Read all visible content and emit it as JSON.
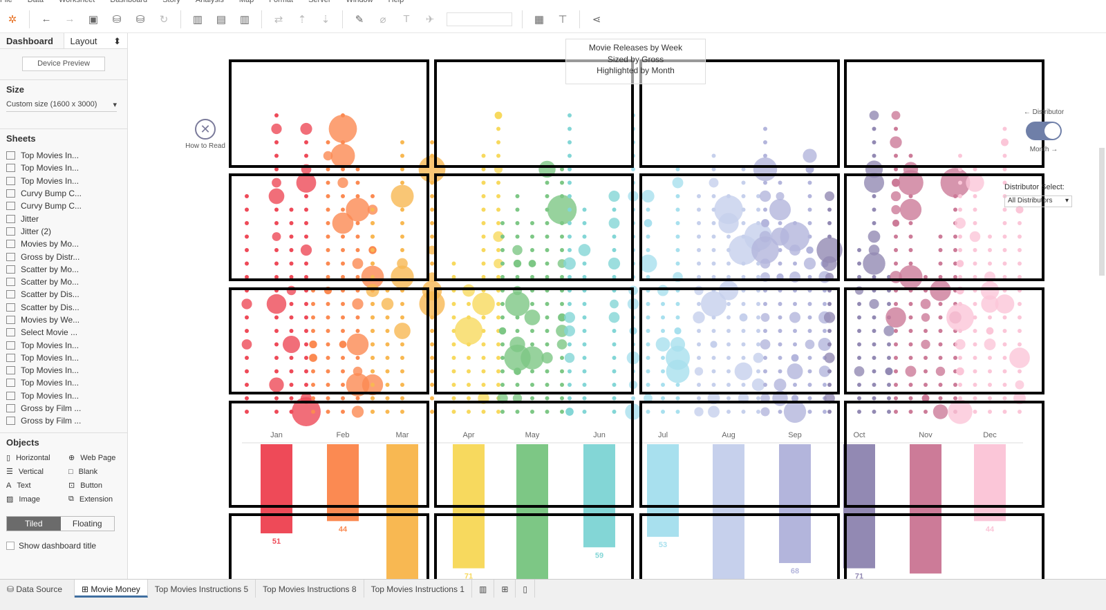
{
  "menu": [
    "File",
    "Data",
    "Worksheet",
    "Dashboard",
    "Story",
    "Analysis",
    "Map",
    "Format",
    "Server",
    "Window",
    "Help"
  ],
  "toolbar": {
    "icons": [
      "tableau-logo-icon",
      "back-icon",
      "forward-icon",
      "save-icon",
      "new-datasource-icon",
      "pause-updates-icon",
      "refresh-icon",
      "new-worksheet-icon",
      "duplicate-sheet-icon",
      "clear-sheet-icon",
      "swap-icon",
      "sort-asc-icon",
      "sort-desc-icon",
      "highlight-icon",
      "group-icon",
      "label-icon",
      "pin-icon",
      "fit-select",
      "show-me-icon",
      "presentation-icon",
      "share-icon"
    ]
  },
  "left_panel": {
    "tab_dashboard": "Dashboard",
    "tab_layout": "Layout",
    "device_preview": "Device Preview",
    "size_heading": "Size",
    "size_value": "Custom size (1600 x 3000)",
    "sheets_heading": "Sheets",
    "sheets": [
      "Top Movies In...",
      "Top Movies In...",
      "Top Movies In...",
      "Curvy Bump C...",
      "Curvy Bump C...",
      "Jitter",
      "Jitter (2)",
      "Movies by Mo...",
      "Gross by Distr...",
      "Scatter by Mo...",
      "Scatter by Mo...",
      "Scatter by Dis...",
      "Scatter by Dis...",
      "Movies by We...",
      "Select Movie ...",
      "Top Movies In...",
      "Top Movies In...",
      "Top Movies In...",
      "Top Movies In...",
      "Top Movies In...",
      "Gross by Film ...",
      "Gross by Film ..."
    ],
    "objects_heading": "Objects",
    "objects": [
      "Horizontal",
      "Web Page",
      "Vertical",
      "Blank",
      "Text",
      "Button",
      "Image",
      "Extension"
    ],
    "tiled": "Tiled",
    "floating": "Floating",
    "show_title": "Show dashboard title"
  },
  "bottom_tabs": [
    "Data Source",
    "Movie Money",
    "Top Movies Instructions 5",
    "Top Movies Instructions 8",
    "Top Movies Instructions 1"
  ],
  "dashboard": {
    "title_lines": [
      "Movie Releases by Week",
      "Sized by Gross",
      "Highlighted by Month"
    ],
    "how_to_read": "How to Read",
    "toggle_top": "← Distributor",
    "toggle_bottom": "Month →",
    "toggle_state": "on",
    "distributor_label": "Distributor Select:",
    "distributor_value": "All Distributors"
  },
  "chart_data": {
    "type": "bar",
    "categories": [
      "Jan",
      "Feb",
      "Mar",
      "Apr",
      "May",
      "Jun",
      "Jul",
      "Aug",
      "Sep",
      "Oct",
      "Nov",
      "Dec"
    ],
    "values": [
      51,
      44,
      null,
      71,
      null,
      59,
      53,
      null,
      68,
      71,
      null,
      44
    ],
    "labels": [
      "51",
      "44",
      "",
      "71",
      "",
      "59",
      "53",
      "",
      "68",
      "71",
      "",
      "44"
    ],
    "colors": [
      "#ee4a58",
      "#fb8a52",
      "#f8b852",
      "#f7d95e",
      "#7dc785",
      "#83d6d6",
      "#a8e0ee",
      "#c6d0ec",
      "#b3b5dc",
      "#9289b3",
      "#cc7b98",
      "#fbc6d8"
    ]
  }
}
